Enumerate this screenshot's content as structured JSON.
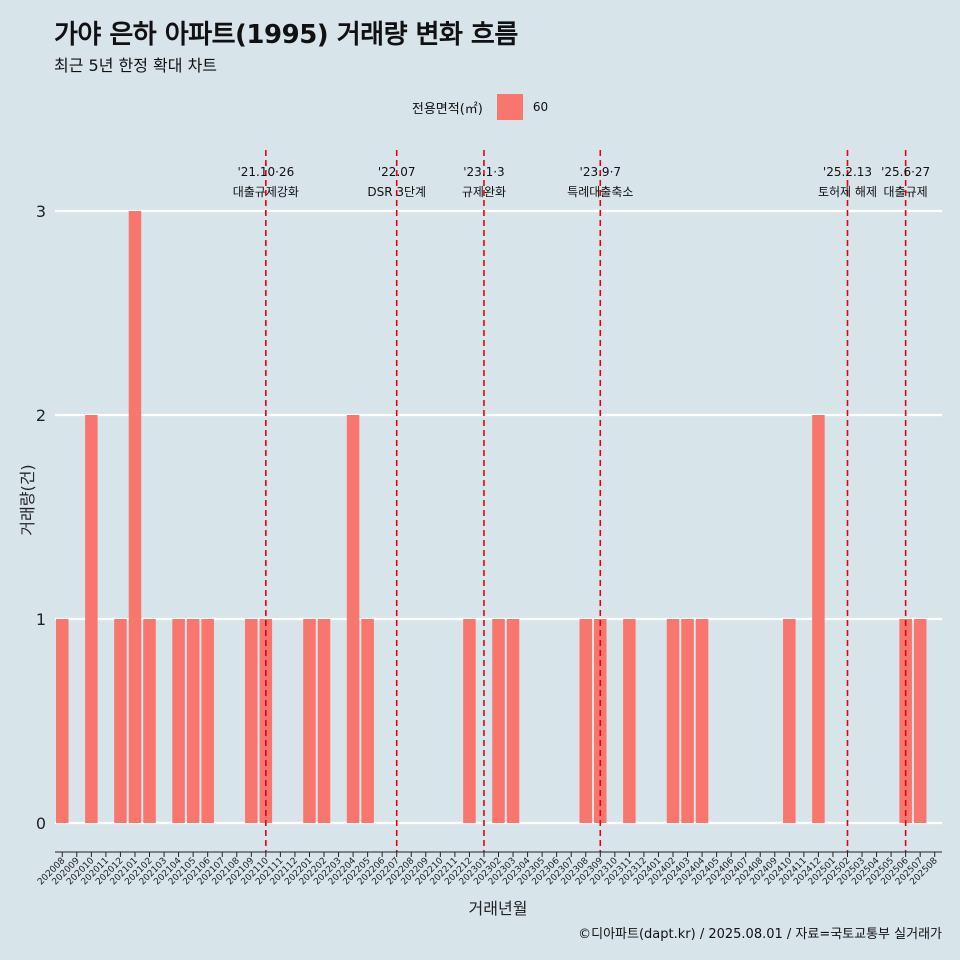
{
  "title": "가야 은하 아파트(1995) 거래량 변화 흐름",
  "subtitle": "최근 5년 한정 확대 차트",
  "caption": "©디아파트(dapt.kr) / 2025.08.01 / 자료=국토교통부 실거래가",
  "colors": {
    "background": "#d7e4ea",
    "bar": "#f8766d",
    "event_line": "#e8000b",
    "grid": "#ffffff"
  },
  "chart_data": {
    "type": "bar",
    "xlabel": "거래년월",
    "ylabel": "거래량(건)",
    "ylim": [
      0,
      3
    ],
    "yticks": [
      0,
      1,
      2,
      3
    ],
    "legend": {
      "title": "전용면적(㎡)",
      "placement": "top"
    },
    "categories": [
      "202008",
      "202009",
      "202010",
      "202011",
      "202012",
      "202101",
      "202102",
      "202103",
      "202104",
      "202105",
      "202106",
      "202107",
      "202108",
      "202109",
      "202110",
      "202111",
      "202112",
      "202201",
      "202202",
      "202203",
      "202204",
      "202205",
      "202206",
      "202207",
      "202208",
      "202209",
      "202210",
      "202211",
      "202212",
      "202301",
      "202302",
      "202303",
      "202304",
      "202305",
      "202306",
      "202307",
      "202308",
      "202309",
      "202310",
      "202311",
      "202312",
      "202401",
      "202402",
      "202403",
      "202404",
      "202405",
      "202406",
      "202407",
      "202408",
      "202409",
      "202410",
      "202411",
      "202412",
      "202501",
      "202502",
      "202503",
      "202504",
      "202505",
      "202506",
      "202507",
      "202508"
    ],
    "series": [
      {
        "name": "60",
        "values": [
          1,
          0,
          2,
          0,
          1,
          3,
          1,
          0,
          1,
          1,
          1,
          0,
          0,
          1,
          1,
          0,
          0,
          1,
          1,
          0,
          2,
          1,
          0,
          0,
          0,
          0,
          0,
          0,
          1,
          0,
          1,
          1,
          0,
          0,
          0,
          0,
          1,
          1,
          0,
          1,
          0,
          0,
          1,
          1,
          1,
          0,
          0,
          0,
          0,
          0,
          1,
          0,
          2,
          0,
          0,
          0,
          0,
          0,
          1,
          1,
          0
        ]
      }
    ],
    "events": [
      {
        "date": "'21.10·26",
        "label": "대출규제강화",
        "x": "202110"
      },
      {
        "date": "'22.07",
        "label": "DSR 3단계",
        "x": "202207"
      },
      {
        "date": "'23.1·3",
        "label": "규제완화",
        "x": "202301"
      },
      {
        "date": "'23.9·7",
        "label": "특례대출축소",
        "x": "202309"
      },
      {
        "date": "'25.2.13",
        "label": "토허제 해제",
        "x": "202502"
      },
      {
        "date": "'25.6·27",
        "label": "대출규제",
        "x": "202506"
      }
    ]
  }
}
